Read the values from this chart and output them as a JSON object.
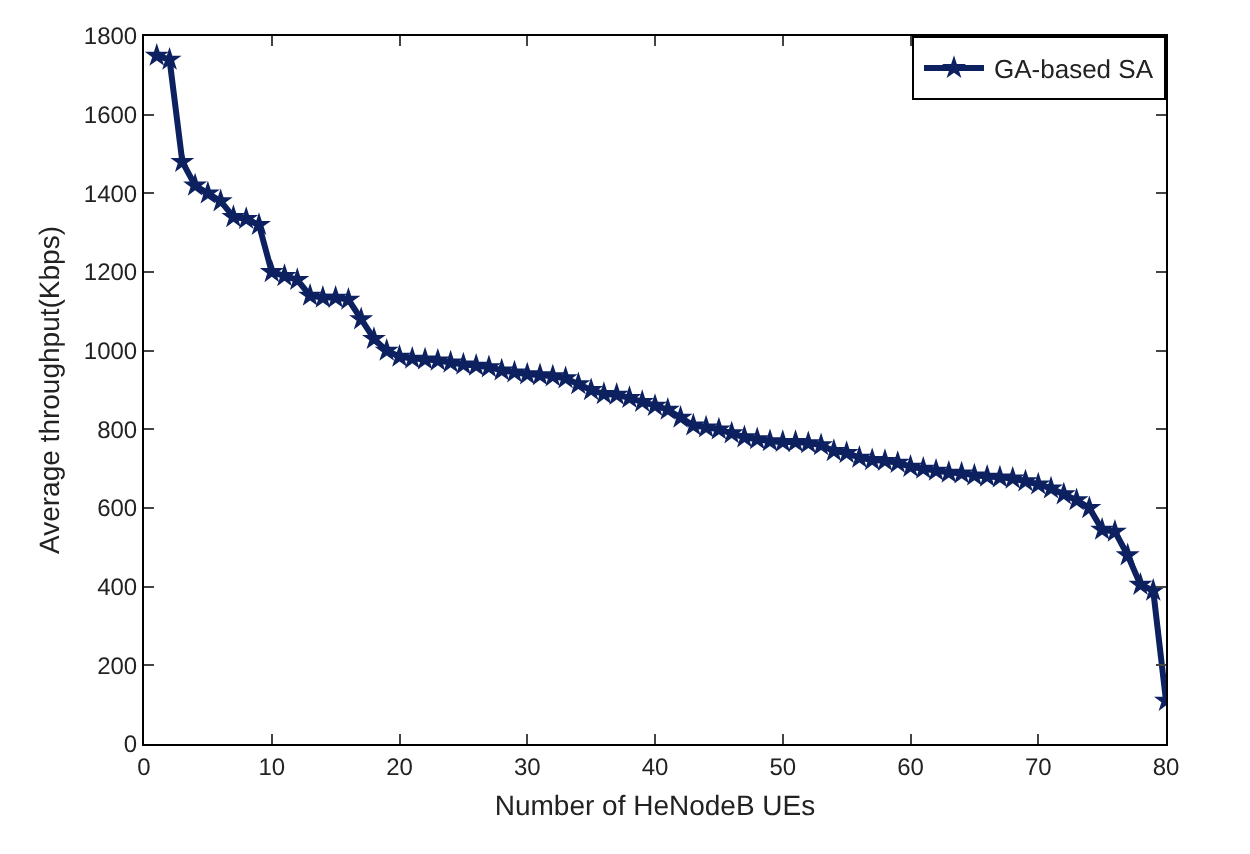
{
  "chart_data": {
    "type": "line",
    "xlabel": "Number of HeNodeB UEs",
    "ylabel": "Average throughput(Kbps)",
    "x": [
      1,
      2,
      3,
      4,
      5,
      6,
      7,
      8,
      9,
      10,
      11,
      12,
      13,
      14,
      15,
      16,
      17,
      18,
      19,
      20,
      21,
      22,
      23,
      24,
      25,
      26,
      27,
      28,
      29,
      30,
      31,
      32,
      33,
      34,
      35,
      36,
      37,
      38,
      39,
      40,
      41,
      42,
      43,
      44,
      45,
      46,
      47,
      48,
      49,
      50,
      51,
      52,
      53,
      54,
      55,
      56,
      57,
      58,
      59,
      60,
      61,
      62,
      63,
      64,
      65,
      66,
      67,
      68,
      69,
      70,
      71,
      72,
      73,
      74,
      75,
      76,
      77,
      78,
      79,
      80
    ],
    "series": [
      {
        "name": "GA-based SA",
        "color": "#0d2060",
        "values": [
          1750,
          1740,
          1480,
          1420,
          1400,
          1380,
          1340,
          1335,
          1320,
          1200,
          1190,
          1180,
          1140,
          1135,
          1135,
          1130,
          1080,
          1030,
          1000,
          985,
          980,
          978,
          975,
          970,
          965,
          962,
          958,
          950,
          945,
          940,
          938,
          935,
          930,
          915,
          900,
          890,
          888,
          880,
          870,
          860,
          850,
          830,
          810,
          805,
          800,
          790,
          780,
          775,
          770,
          768,
          768,
          765,
          760,
          745,
          740,
          728,
          722,
          720,
          715,
          705,
          700,
          695,
          690,
          688,
          683,
          680,
          678,
          675,
          668,
          660,
          650,
          635,
          620,
          600,
          545,
          540,
          480,
          405,
          390,
          110
        ]
      }
    ],
    "xlim": [
      0,
      80
    ],
    "xticks": [
      0,
      10,
      20,
      30,
      40,
      50,
      60,
      70,
      80
    ],
    "ylim": [
      0,
      1800
    ],
    "yticks": [
      0,
      200,
      400,
      600,
      800,
      1000,
      1200,
      1400,
      1600,
      1800
    ],
    "grid": false,
    "legend": "top right",
    "marker": "star",
    "line_style": "solid"
  }
}
